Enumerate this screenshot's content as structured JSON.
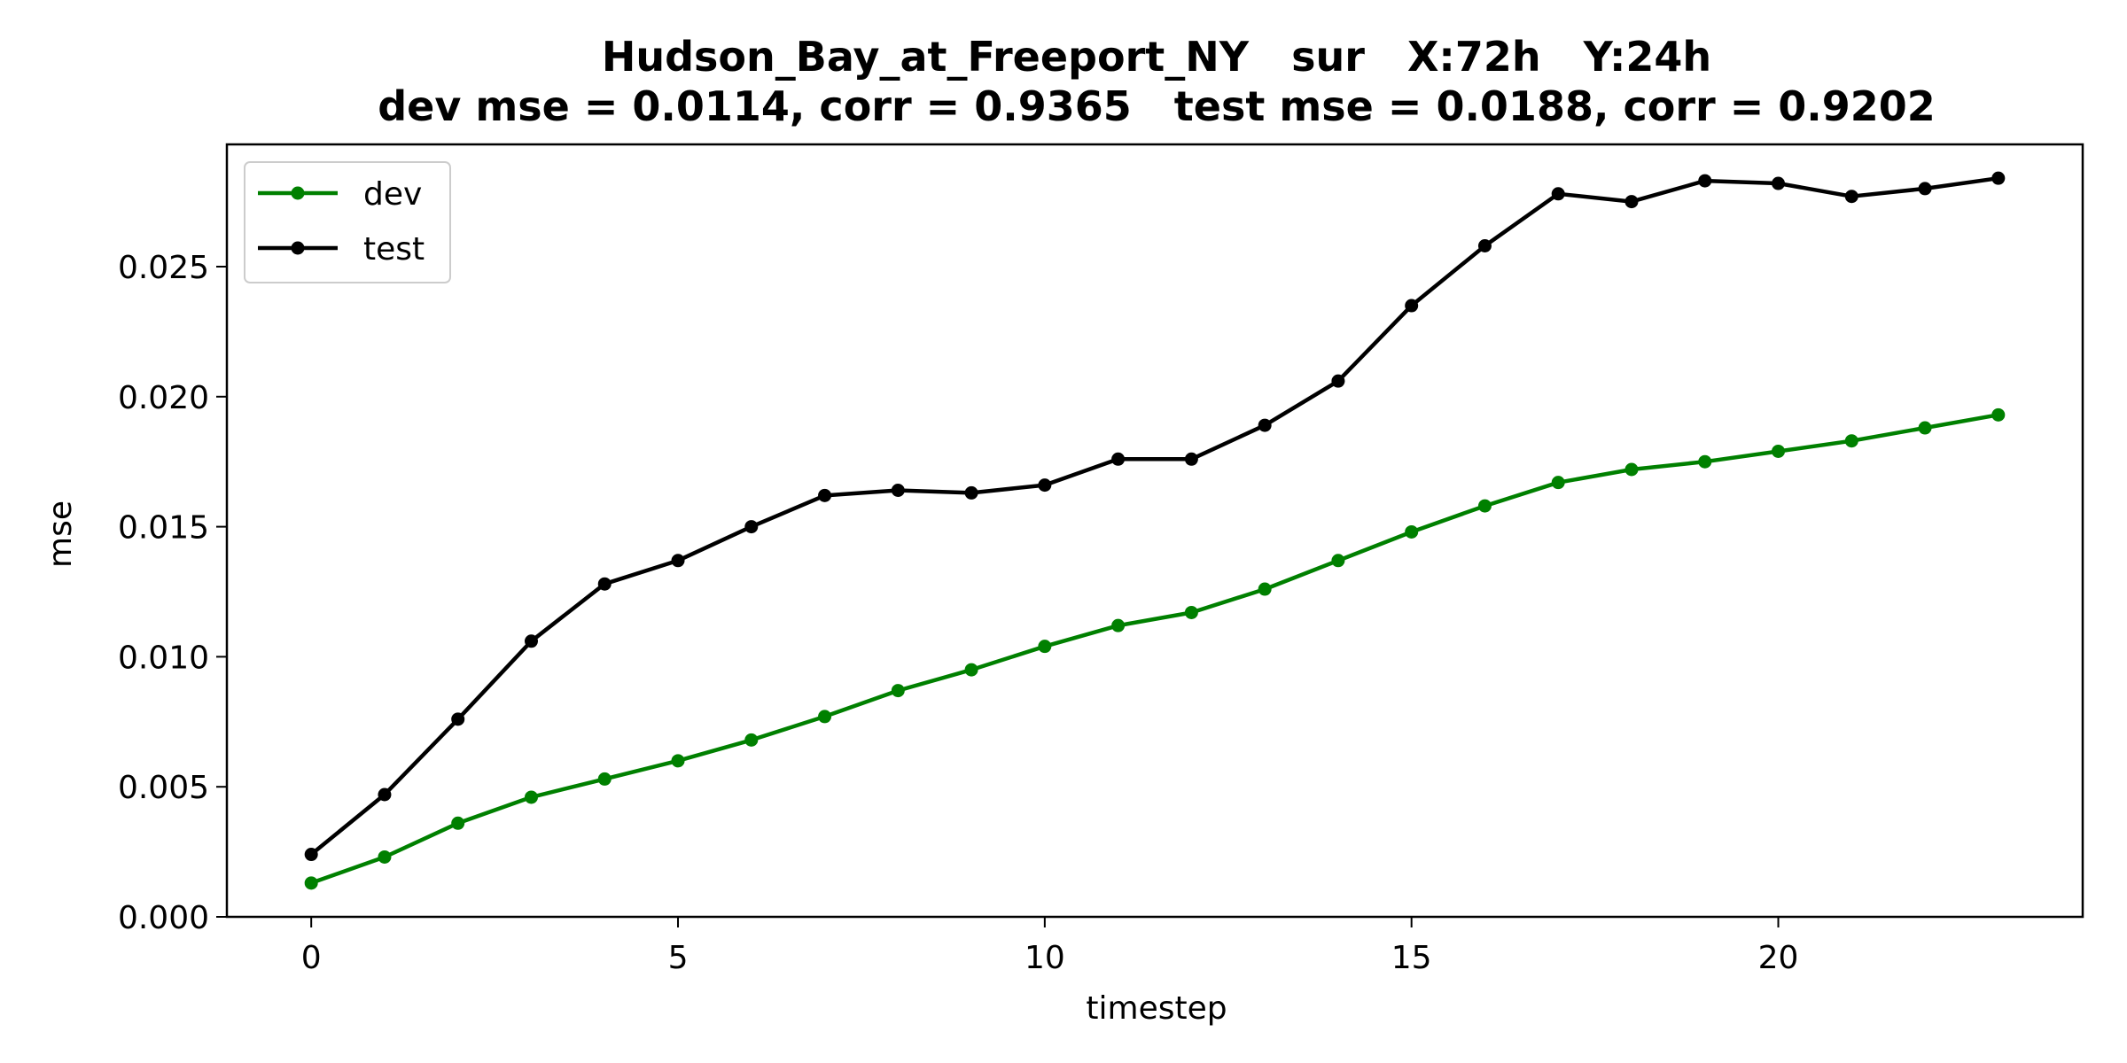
{
  "chart_data": {
    "type": "line",
    "title": "Hudson_Bay_at_Freeport_NY   sur   X:72h   Y:24h",
    "subtitle": "dev mse = 0.0114, corr = 0.9365   test mse = 0.0188, corr = 0.9202",
    "xlabel": "timestep",
    "ylabel": "mse",
    "xlim": [
      -1.15,
      24.15
    ],
    "ylim": [
      0.0,
      0.0297
    ],
    "x_ticks": [
      0,
      5,
      10,
      15,
      20
    ],
    "x_tick_labels": [
      "0",
      "5",
      "10",
      "15",
      "20"
    ],
    "y_ticks": [
      0.0,
      0.005,
      0.01,
      0.015,
      0.02,
      0.025
    ],
    "y_tick_labels": [
      "0.000",
      "0.005",
      "0.010",
      "0.015",
      "0.020",
      "0.025"
    ],
    "grid": false,
    "legend_position": "top-left",
    "x": [
      0,
      1,
      2,
      3,
      4,
      5,
      6,
      7,
      8,
      9,
      10,
      11,
      12,
      13,
      14,
      15,
      16,
      17,
      18,
      19,
      20,
      21,
      22,
      23
    ],
    "series": [
      {
        "name": "dev",
        "color": "#008000",
        "values": [
          0.0013,
          0.0023,
          0.0036,
          0.0046,
          0.0053,
          0.006,
          0.0068,
          0.0077,
          0.0087,
          0.0095,
          0.0104,
          0.0112,
          0.0117,
          0.0126,
          0.0137,
          0.0148,
          0.0158,
          0.0167,
          0.0172,
          0.0175,
          0.0179,
          0.0183,
          0.0188,
          0.0193
        ]
      },
      {
        "name": "test",
        "color": "#000000",
        "values": [
          0.0024,
          0.0047,
          0.0076,
          0.0106,
          0.0128,
          0.0137,
          0.015,
          0.0162,
          0.0164,
          0.0163,
          0.0166,
          0.0176,
          0.0176,
          0.0189,
          0.0206,
          0.0235,
          0.0258,
          0.0278,
          0.0275,
          0.0283,
          0.0282,
          0.0277,
          0.028,
          0.0284
        ]
      }
    ]
  }
}
